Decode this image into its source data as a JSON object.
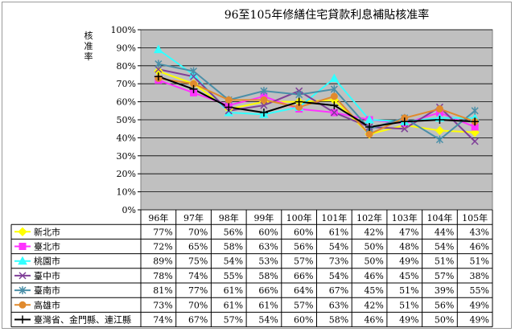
{
  "chart_data": {
    "type": "line",
    "title": "96至105年修繕住宅貸款利息補貼核准率",
    "ylabel": "核准率",
    "xlabel": "",
    "ylim": [
      0,
      100
    ],
    "y_ticks": [
      "0%",
      "10%",
      "20%",
      "30%",
      "40%",
      "50%",
      "60%",
      "70%",
      "80%",
      "90%",
      "100%"
    ],
    "categories": [
      "96年",
      "97年",
      "98年",
      "99年",
      "100年",
      "101年",
      "102年",
      "103年",
      "104年",
      "105年"
    ],
    "grid": true,
    "legend": "data-table",
    "series": [
      {
        "name": "新北市",
        "color": "#ffff00",
        "marker": "diamond",
        "values": [
          77,
          70,
          56,
          60,
          60,
          61,
          42,
          47,
          44,
          43
        ]
      },
      {
        "name": "臺北市",
        "color": "#ff33ff",
        "marker": "square",
        "values": [
          72,
          65,
          58,
          63,
          56,
          54,
          50,
          48,
          54,
          46
        ]
      },
      {
        "name": "桃園市",
        "color": "#33ffff",
        "marker": "triangle",
        "values": [
          89,
          75,
          54,
          53,
          57,
          73,
          50,
          49,
          51,
          51
        ]
      },
      {
        "name": "臺中市",
        "color": "#7f3f98",
        "marker": "x",
        "values": [
          78,
          74,
          55,
          58,
          66,
          54,
          46,
          45,
          57,
          38
        ]
      },
      {
        "name": "臺南市",
        "color": "#4a8fa8",
        "marker": "star",
        "values": [
          81,
          77,
          61,
          66,
          64,
          67,
          45,
          51,
          39,
          55
        ]
      },
      {
        "name": "高雄市",
        "color": "#e08a2e",
        "marker": "circle",
        "values": [
          73,
          70,
          61,
          61,
          57,
          63,
          42,
          51,
          56,
          49
        ]
      },
      {
        "name": "臺灣省、金門縣、連江縣",
        "color": "#000000",
        "marker": "plus",
        "values": [
          74,
          67,
          57,
          54,
          60,
          58,
          46,
          49,
          50,
          49
        ]
      }
    ],
    "table": {
      "rows": [
        [
          "77%",
          "70%",
          "56%",
          "60%",
          "60%",
          "61%",
          "42%",
          "47%",
          "44%",
          "43%"
        ],
        [
          "72%",
          "65%",
          "58%",
          "63%",
          "56%",
          "54%",
          "50%",
          "48%",
          "54%",
          "46%"
        ],
        [
          "89%",
          "75%",
          "54%",
          "53%",
          "57%",
          "73%",
          "50%",
          "49%",
          "51%",
          "51%"
        ],
        [
          "78%",
          "74%",
          "55%",
          "58%",
          "66%",
          "54%",
          "46%",
          "45%",
          "57%",
          "38%"
        ],
        [
          "81%",
          "77%",
          "61%",
          "66%",
          "64%",
          "67%",
          "45%",
          "51%",
          "39%",
          "55%"
        ],
        [
          "73%",
          "70%",
          "61%",
          "61%",
          "57%",
          "63%",
          "42%",
          "51%",
          "56%",
          "49%"
        ],
        [
          "74%",
          "67%",
          "57%",
          "54%",
          "60%",
          "58%",
          "46%",
          "49%",
          "50%",
          "49%"
        ]
      ]
    }
  }
}
